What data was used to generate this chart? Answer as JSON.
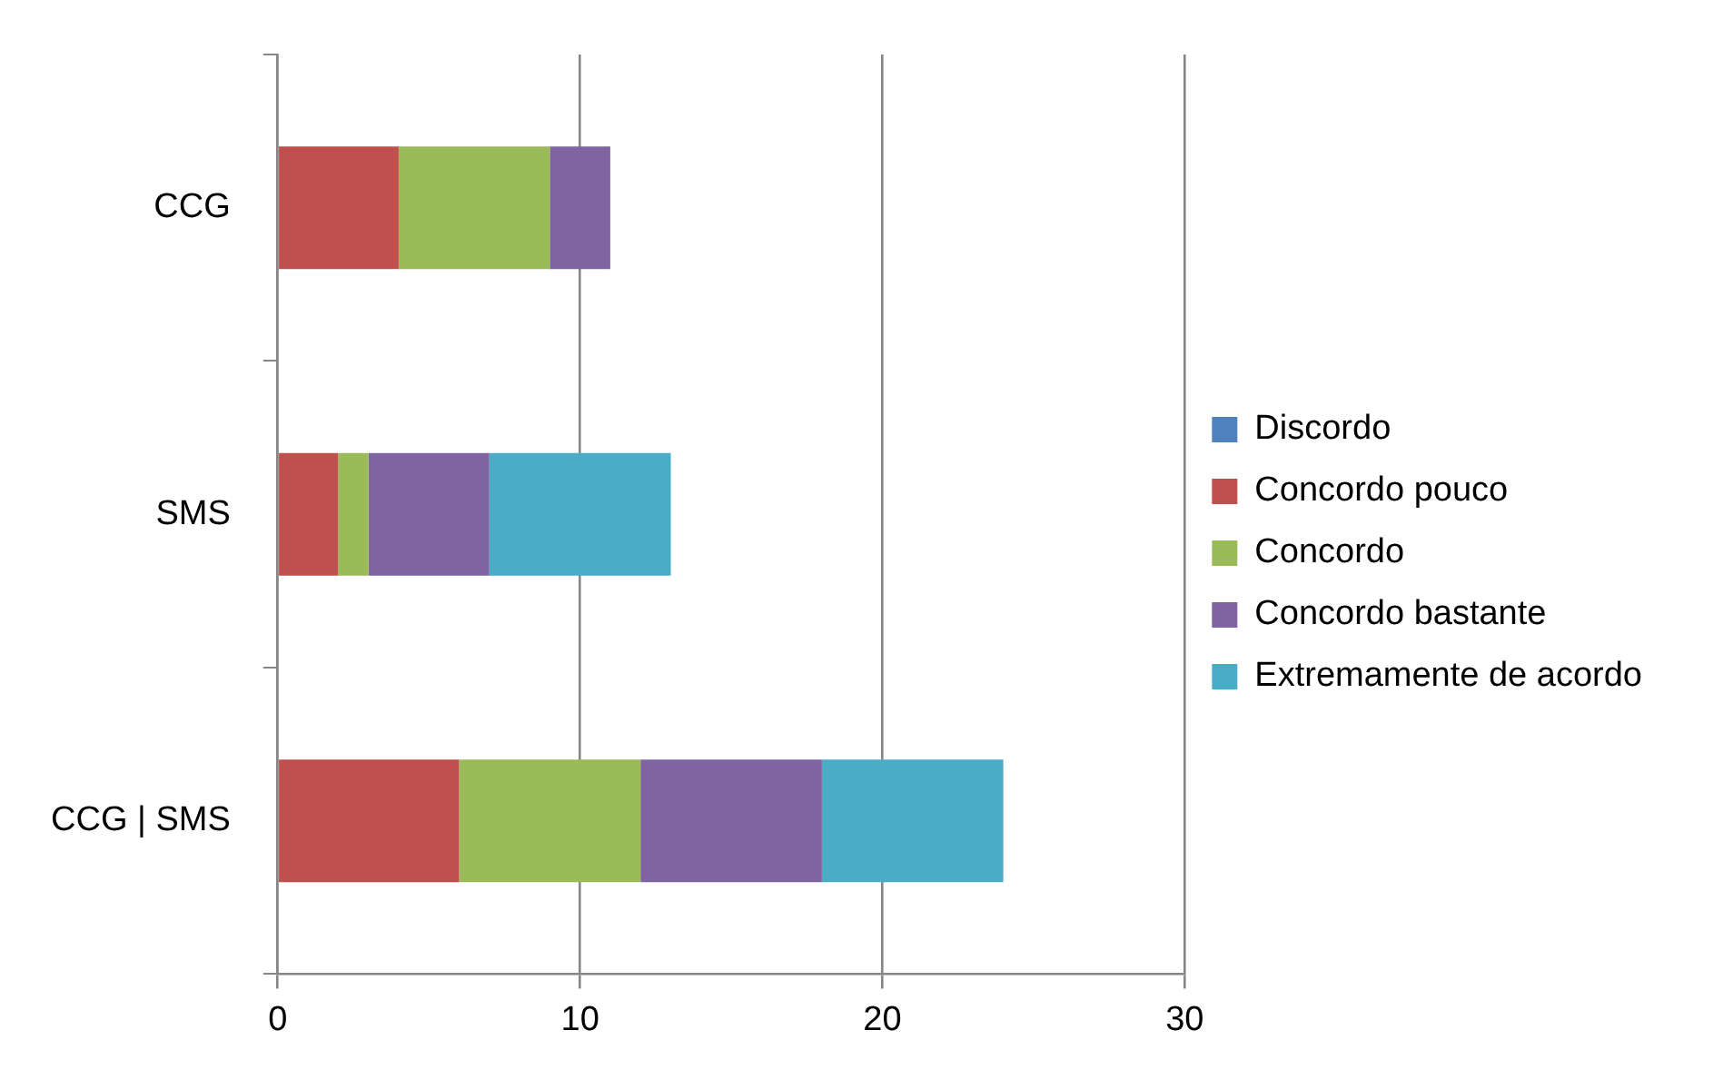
{
  "chart_data": {
    "type": "bar",
    "orientation": "horizontal",
    "stacked": true,
    "categories": [
      "CCG",
      "SMS",
      "CCG | SMS"
    ],
    "series": [
      {
        "name": "Discordo",
        "color": "#4f81bd",
        "values": [
          0,
          0,
          0
        ]
      },
      {
        "name": "Concordo pouco",
        "color": "#c0504d",
        "values": [
          4,
          2,
          6
        ]
      },
      {
        "name": "Concordo",
        "color": "#9bbb59",
        "values": [
          5,
          1,
          6
        ]
      },
      {
        "name": "Concordo bastante",
        "color": "#8064a2",
        "values": [
          2,
          4,
          6
        ]
      },
      {
        "name": "Extremamente de acordo",
        "color": "#4bacc6",
        "values": [
          0,
          6,
          6
        ]
      }
    ],
    "xlim": [
      0,
      30
    ],
    "xticks": [
      0,
      10,
      20,
      30
    ],
    "grid": "x",
    "legend": "right"
  }
}
